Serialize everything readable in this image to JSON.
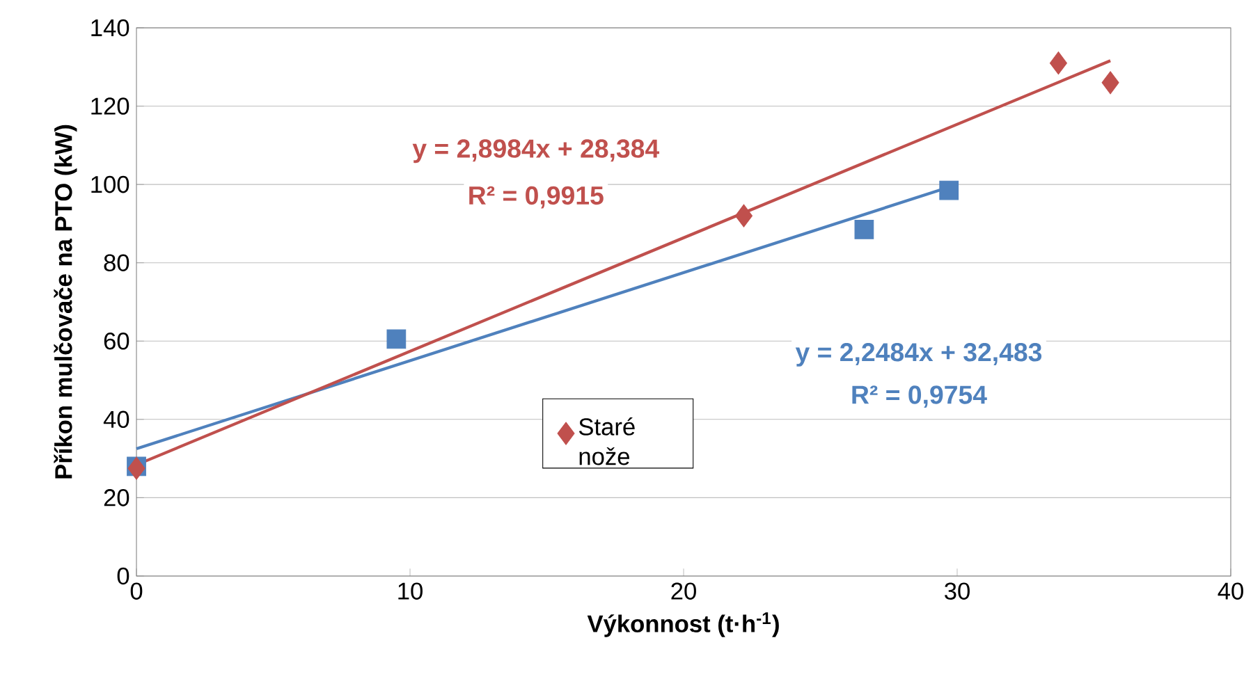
{
  "chart_data": {
    "type": "scatter",
    "xlabel": "Výkonnost (t·h$^{-1}$)",
    "ylabel": "Příkon mulčovače na PTO (kW)",
    "xlim": [
      0,
      40
    ],
    "xticks": [
      0,
      10,
      20,
      30,
      40
    ],
    "ylim": [
      0,
      140
    ],
    "yticks": [
      0,
      20,
      40,
      60,
      80,
      100,
      120,
      140
    ],
    "grid": "y",
    "legend": "bottom",
    "series": [
      {
        "color": "#4f81bd",
        "marker": "square",
        "x": [
          0,
          9.5,
          26.6,
          29.7
        ],
        "values": [
          28,
          60.5,
          88.5,
          98.5
        ]
      },
      {
        "name": "Staré nože",
        "color": "#c0504d",
        "marker": "diamond",
        "x": [
          0,
          22.2,
          33.7,
          35.6
        ],
        "values": [
          27.5,
          92,
          131,
          126
        ]
      },
      {
        "type": "line",
        "color": "#4f81bd",
        "marker": "none",
        "x": [
          0,
          29.7
        ],
        "values": [
          32.5,
          99.3
        ]
      },
      {
        "type": "line",
        "color": "#c0504d",
        "marker": "none",
        "x": [
          0,
          35.6
        ],
        "values": [
          28.4,
          131.6
        ]
      }
    ],
    "annotations": [
      "y = 2,8984x + 28,384",
      "R² = 0,9915",
      "y = 2,2484x + 32,483",
      "R² = 0,9754"
    ]
  }
}
